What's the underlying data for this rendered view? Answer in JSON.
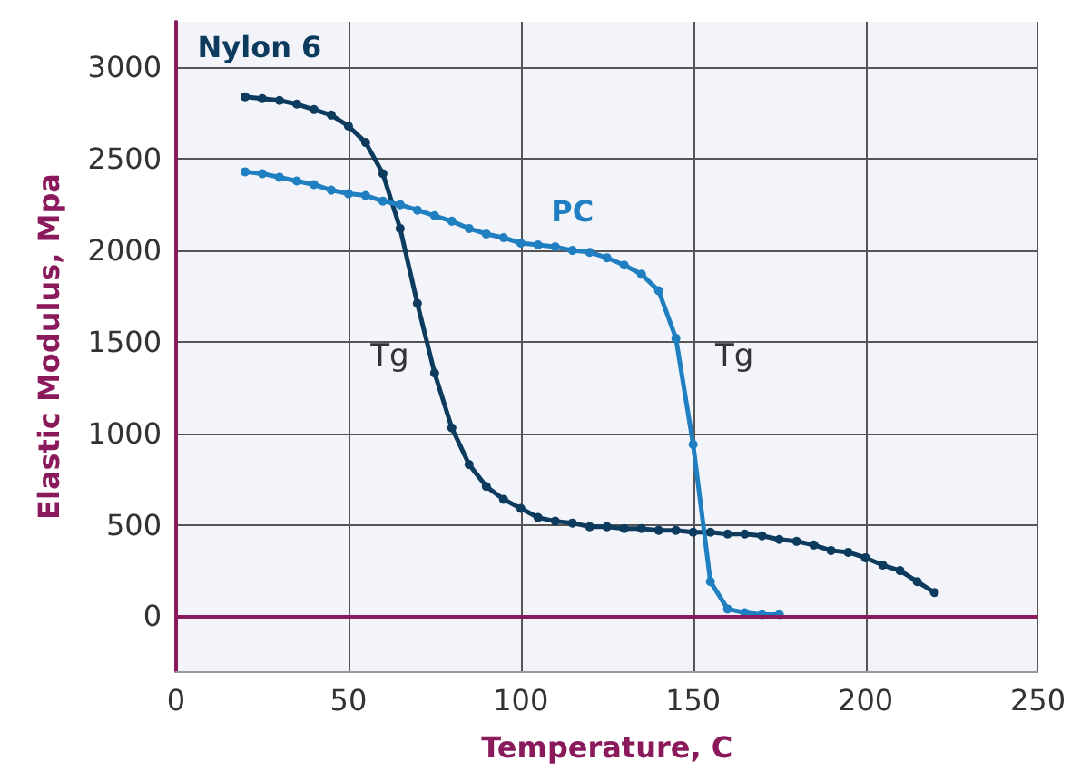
{
  "chart_data": {
    "type": "line",
    "xlabel": "Temperature, C",
    "ylabel": "Elastic Modulus, Mpa",
    "xlim": [
      0,
      250
    ],
    "xticks": [
      0,
      50,
      100,
      150,
      200,
      250
    ],
    "ylim": [
      -300,
      3250
    ],
    "yticks": [
      0,
      500,
      1000,
      1500,
      2000,
      2500,
      3000
    ],
    "grid": true,
    "marker": "circle",
    "line_style": "solid",
    "ref_lines": [
      {
        "axis": "y",
        "value": 0,
        "color": "#8b1a5c"
      }
    ],
    "annotations": [
      "Tg",
      "Tg"
    ],
    "series": [
      {
        "name": "Nylon 6",
        "color": "#0d3b5e",
        "x": [
          20,
          25,
          30,
          35,
          40,
          45,
          50,
          55,
          60,
          65,
          70,
          75,
          80,
          85,
          90,
          95,
          100,
          105,
          110,
          115,
          120,
          125,
          130,
          135,
          140,
          145,
          150,
          155,
          160,
          165,
          170,
          175,
          180,
          185,
          190,
          195,
          200,
          205,
          210,
          215,
          220
        ],
        "values": [
          2840,
          2830,
          2820,
          2800,
          2770,
          2740,
          2680,
          2590,
          2420,
          2120,
          1710,
          1330,
          1030,
          830,
          710,
          640,
          590,
          540,
          520,
          510,
          490,
          490,
          480,
          480,
          470,
          470,
          460,
          460,
          450,
          450,
          440,
          420,
          410,
          390,
          360,
          350,
          320,
          280,
          250,
          190,
          130
        ]
      },
      {
        "name": "PC",
        "color": "#1f7fc0",
        "x": [
          20,
          25,
          30,
          35,
          40,
          45,
          50,
          55,
          60,
          65,
          70,
          75,
          80,
          85,
          90,
          95,
          100,
          105,
          110,
          115,
          120,
          125,
          130,
          135,
          140,
          145,
          150,
          155,
          160,
          165,
          170,
          175
        ],
        "values": [
          2430,
          2420,
          2400,
          2380,
          2360,
          2330,
          2310,
          2300,
          2270,
          2250,
          2220,
          2190,
          2160,
          2120,
          2090,
          2070,
          2040,
          2030,
          2020,
          2000,
          1990,
          1960,
          1920,
          1870,
          1780,
          1520,
          940,
          190,
          40,
          20,
          10,
          10
        ]
      }
    ]
  }
}
